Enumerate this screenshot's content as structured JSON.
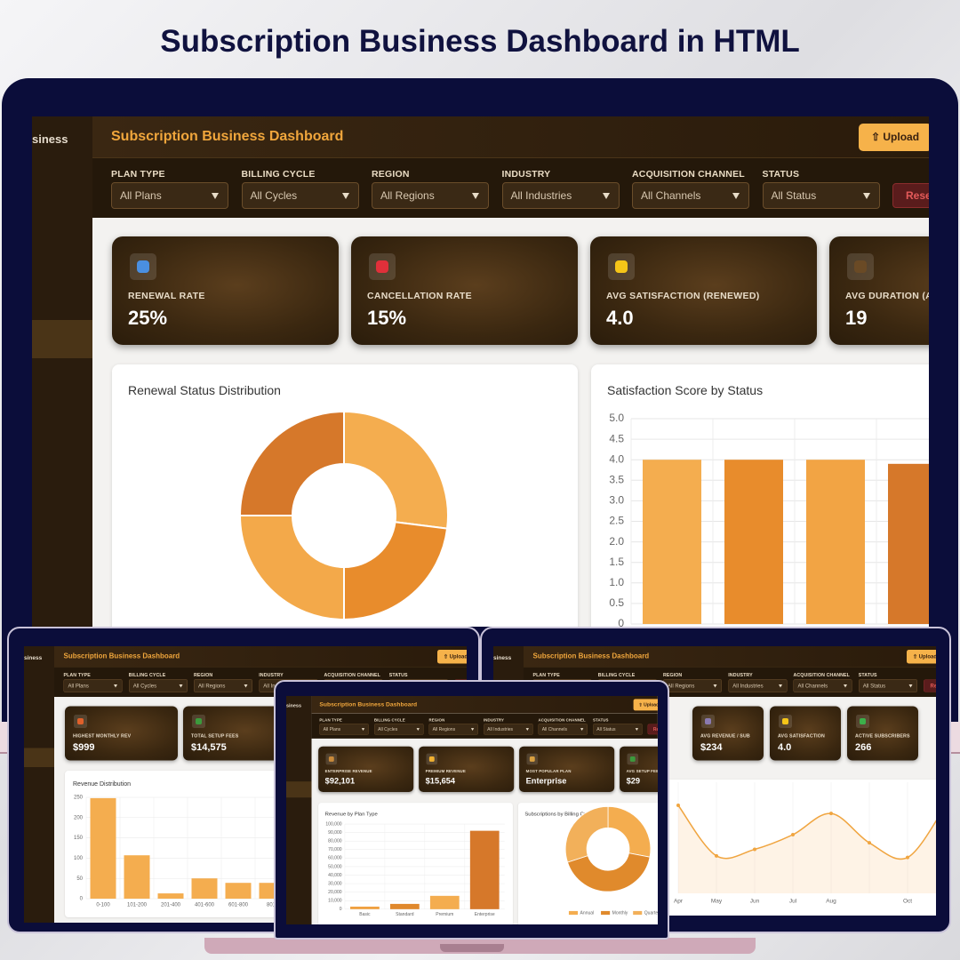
{
  "header": {
    "title": "Subscription Business Dashboard in HTML"
  },
  "app": {
    "brand": "siness",
    "title": "Subscription Business Dashboard",
    "upload": "⇧ Upload",
    "reset": "Rese",
    "filters": [
      {
        "label": "PLAN TYPE",
        "value": "All Plans"
      },
      {
        "label": "BILLING CYCLE",
        "value": "All Cycles"
      },
      {
        "label": "REGION",
        "value": "All Regions"
      },
      {
        "label": "INDUSTRY",
        "value": "All Industries"
      },
      {
        "label": "ACQUISITION CHANNEL",
        "value": "All Channels"
      },
      {
        "label": "STATUS",
        "value": "All Status"
      }
    ]
  },
  "screens": {
    "main": {
      "kpis": [
        {
          "icon": "#4a8fe0",
          "label": "RENEWAL RATE",
          "value": "25%"
        },
        {
          "icon": "#e0303a",
          "label": "CANCELLATION RATE",
          "value": "15%"
        },
        {
          "icon": "#f5c518",
          "label": "AVG SATISFACTION (RENEWED)",
          "value": "4.0"
        },
        {
          "icon": "#6a4a25",
          "label": "AVG DURATION (A",
          "value": "19"
        }
      ],
      "charts": [
        {
          "type": "donut",
          "title": "Renewal Status Distribution",
          "values": [
            27,
            23,
            25,
            25
          ],
          "colors": [
            "#f4ad4f",
            "#e88c2c",
            "#f3a94a",
            "#d6782a"
          ]
        },
        {
          "type": "bar",
          "title": "Satisfaction Score by Status",
          "categories": [
            null,
            null,
            null,
            null
          ],
          "values": [
            4,
            4,
            4,
            3.9
          ],
          "colors": [
            "#f4ad4f",
            "#e88c2c",
            "#f2a444",
            "#d6782a"
          ],
          "ylim": [
            0,
            5
          ],
          "yticks": [
            0,
            0.5,
            {
              "value": 1,
              "label": "1.0"
            },
            1.5,
            {
              "value": 2,
              "label": "2.0"
            },
            2.5,
            {
              "value": 3,
              "label": "3.0"
            },
            3.5,
            {
              "value": 4,
              "label": "4.0"
            },
            4.5,
            {
              "value": 5,
              "label": "5.0"
            }
          ],
          "grid": true
        }
      ]
    },
    "left": {
      "kpis": [
        {
          "icon": "#e0602a",
          "label": "HIGHEST MONTHLY REV",
          "value": "$999"
        },
        {
          "icon": "#3c9a3c",
          "label": "TOTAL SETUP FEES",
          "value": "$14,575"
        }
      ],
      "charts": [
        {
          "type": "bar",
          "title": "Revenue Distribution",
          "categories": [
            "0-100",
            "101-200",
            "201-400",
            "401-600",
            "601-800",
            "801-"
          ],
          "values": [
            248,
            107,
            13,
            50,
            39,
            39
          ],
          "color": "#f4ad4f",
          "ylim": [
            0,
            250
          ],
          "yticks": [
            0,
            50,
            100,
            150,
            200,
            250
          ],
          "grid": true
        }
      ]
    },
    "center": {
      "kpis": [
        {
          "icon": "#c98a3a",
          "label": "ENTERPRISE REVENUE",
          "value": "$92,101"
        },
        {
          "icon": "#f0b030",
          "label": "PREMIUM REVENUE",
          "value": "$15,654"
        },
        {
          "icon": "#d9a040",
          "label": "MOST POPULAR PLAN",
          "value": "Enterprise"
        },
        {
          "icon": "#3c9a3c",
          "label": "AVG SETUP FEE",
          "value": "$29"
        }
      ],
      "charts": [
        {
          "type": "bar",
          "title": "Revenue by Plan Type",
          "categories": [
            "Basic",
            "Standard",
            "Premium",
            "Enterprise"
          ],
          "values": [
            3000,
            6200,
            15654,
            92101
          ],
          "colors": [
            "#f0a040",
            "#e0882c",
            "#f4ad4f",
            "#d6782a"
          ],
          "ylim": [
            0,
            100000
          ],
          "yticks": [
            0,
            {
              "value": 10000,
              "label": "10,000"
            },
            {
              "value": 20000,
              "label": "20,000"
            },
            {
              "value": 30000,
              "label": "30,000"
            },
            {
              "value": 40000,
              "label": "40,000"
            },
            {
              "value": 50000,
              "label": "50,000"
            },
            {
              "value": 60000,
              "label": "60,000"
            },
            {
              "value": 70000,
              "label": "70,000"
            },
            {
              "value": 80000,
              "label": "80,000"
            },
            {
              "value": 90000,
              "label": "90,000"
            },
            {
              "value": 100000,
              "label": "100,000"
            }
          ],
          "grid": true
        },
        {
          "type": "donut",
          "title": "Subscriptions by Billing Cycle",
          "categories": [
            "Annual",
            "Monthly",
            "Quarterly"
          ],
          "values": [
            28,
            42,
            30
          ],
          "colors": [
            "#f4ad4f",
            "#e08a2c",
            "#f2b05a"
          ],
          "legend": "bottom"
        }
      ]
    },
    "right": {
      "kpis": [
        {
          "icon": "#8a7ab0",
          "label": "AVG REVENUE / SUB",
          "value": "$234"
        },
        {
          "icon": "#f5c518",
          "label": "AVG SATISFACTION",
          "value": "4.0"
        },
        {
          "icon": "#3cb04a",
          "label": "ACTIVE SUBSCRIBERS",
          "value": "266"
        }
      ],
      "charts": [
        {
          "type": "line",
          "categories": [
            "Apr",
            "May",
            "Jun",
            "Jul",
            "Aug",
            null,
            "Oct",
            null
          ],
          "values": [
            27,
            11.5,
            13.5,
            18,
            24.5,
            15.5,
            11,
            27
          ],
          "color": "#f0a540",
          "ylim": [
            0,
            30
          ],
          "grid": true
        }
      ]
    }
  }
}
